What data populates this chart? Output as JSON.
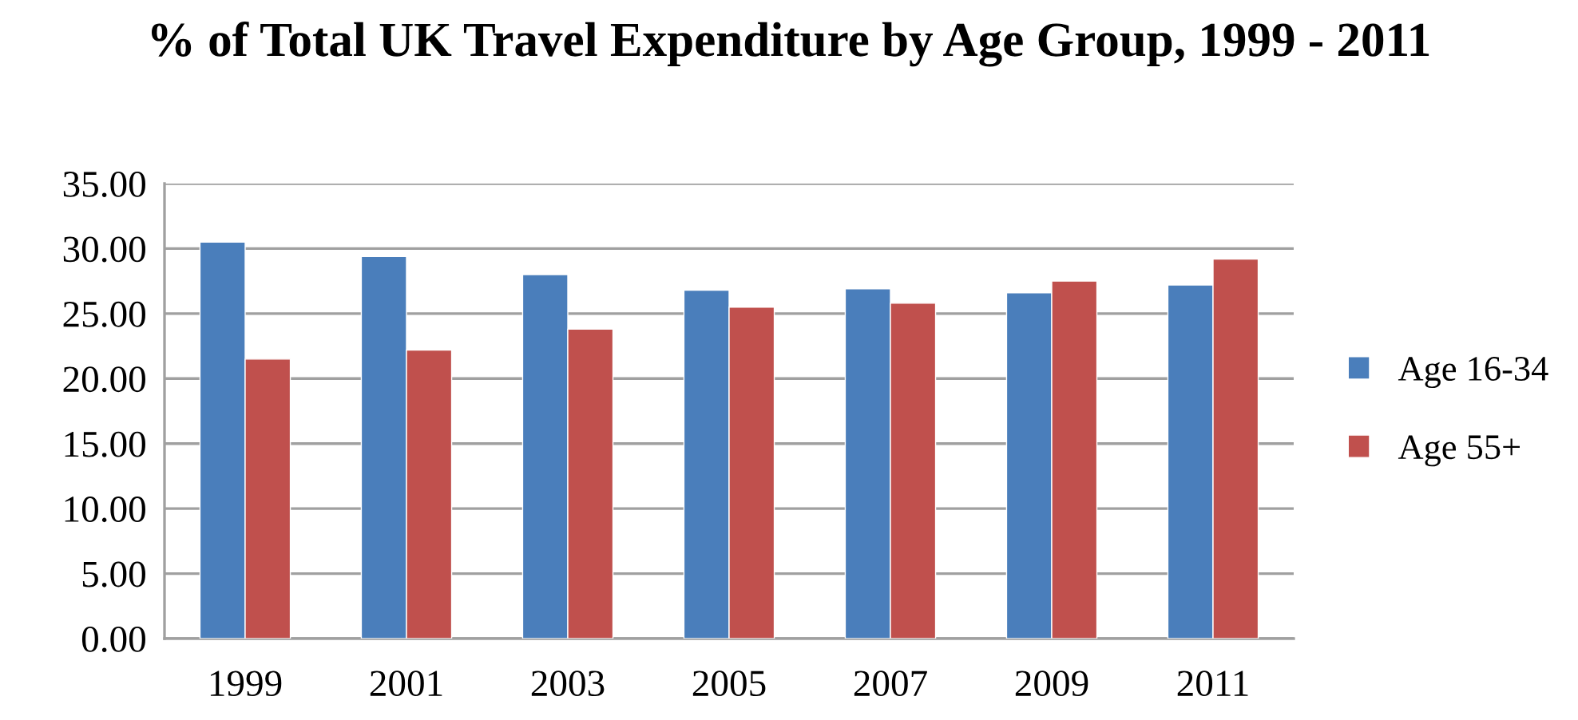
{
  "chart_data": {
    "type": "bar",
    "title": "% of Total UK Travel Expenditure by Age Group, 1999 - 2011",
    "categories": [
      "1999",
      "2001",
      "2003",
      "2005",
      "2007",
      "2009",
      "2011"
    ],
    "series": [
      {
        "name": "Age 16-34",
        "color": "#4a7ebb",
        "values": [
          30.5,
          29.4,
          28.0,
          26.8,
          26.9,
          26.6,
          27.2
        ]
      },
      {
        "name": "Age 55+",
        "color": "#c0504d",
        "values": [
          21.5,
          22.2,
          23.8,
          25.5,
          25.8,
          27.5,
          29.2
        ]
      }
    ],
    "ylim": [
      0,
      35
    ],
    "yticks": [
      {
        "value": 0,
        "label": "0.00"
      },
      {
        "value": 5,
        "label": "5.00"
      },
      {
        "value": 10,
        "label": "10.00"
      },
      {
        "value": 15,
        "label": "15.00"
      },
      {
        "value": 20,
        "label": "20.00"
      },
      {
        "value": 25,
        "label": "25.00"
      },
      {
        "value": 30,
        "label": "30.00"
      },
      {
        "value": 35,
        "label": "35.00"
      }
    ],
    "grid": "y",
    "legend": "right"
  }
}
